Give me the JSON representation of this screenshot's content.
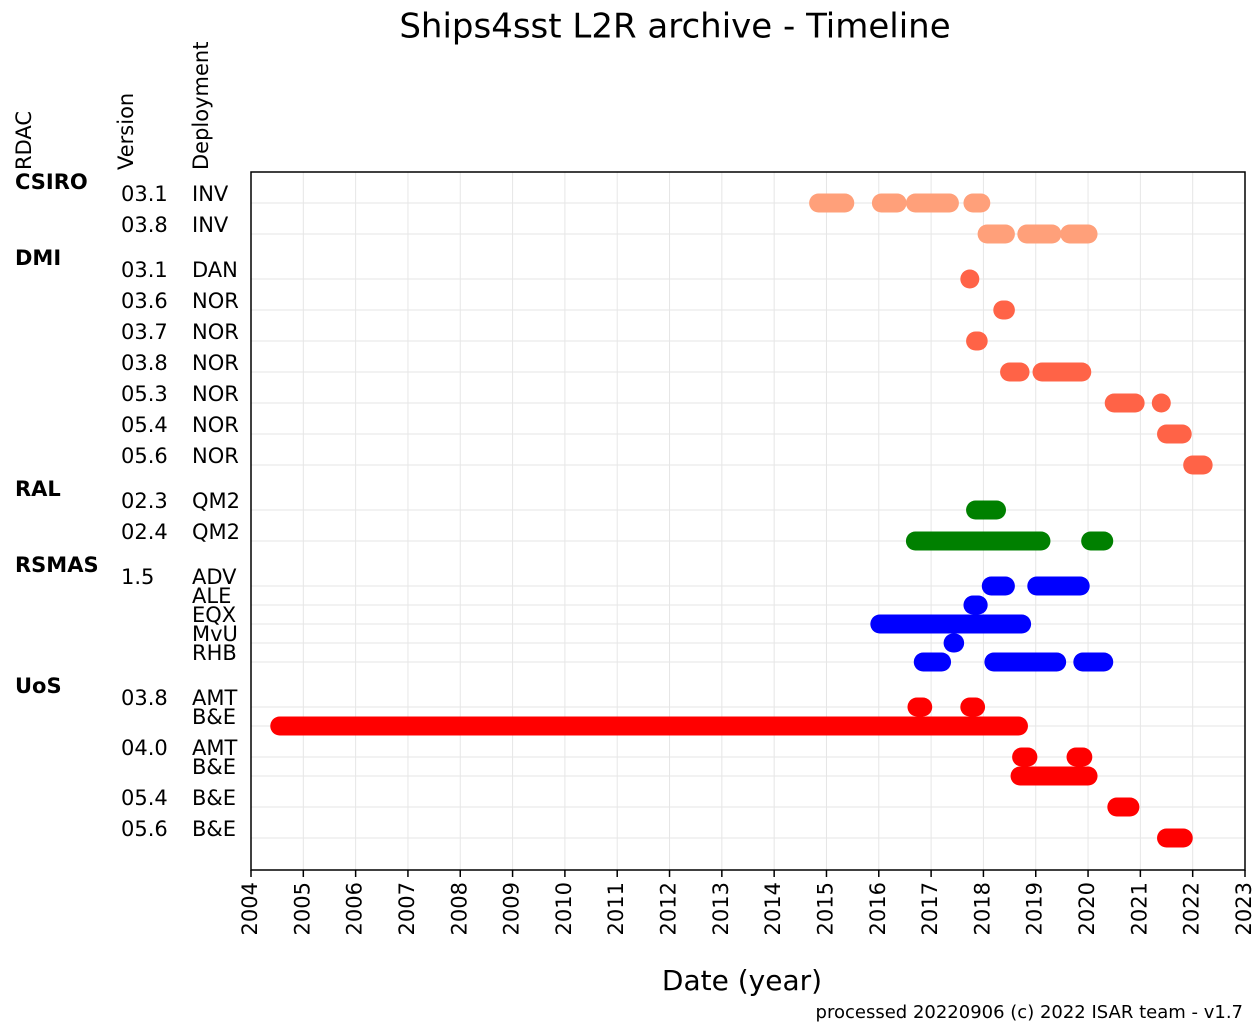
{
  "chart_data": {
    "type": "timeline",
    "title": "Ships4sst L2R archive - Timeline",
    "column_headers": [
      "RDAC",
      "Version",
      "Deployment"
    ],
    "x_label": "Date (year)",
    "footer": "processed 20220906 (c) 2022 ISAR team - v1.7",
    "xlim": [
      2004,
      2023
    ],
    "xticks": [
      2004,
      2005,
      2006,
      2007,
      2008,
      2009,
      2010,
      2011,
      2012,
      2013,
      2014,
      2015,
      2016,
      2017,
      2018,
      2019,
      2020,
      2021,
      2022,
      2023
    ],
    "grid": true,
    "groups": [
      {
        "name": "CSIRO",
        "color": "#ffa07a",
        "versions": [
          {
            "version": "03.1",
            "deployments": [
              {
                "name": "INV",
                "segments": [
                  [
                    2014.85,
                    2015.35
                  ],
                  [
                    2016.05,
                    2016.35
                  ],
                  [
                    2016.7,
                    2017.35
                  ],
                  [
                    2017.8,
                    2017.95
                  ]
                ]
              }
            ]
          },
          {
            "version": "03.8",
            "deployments": [
              {
                "name": "INV",
                "segments": [
                  [
                    2018.07,
                    2018.42
                  ],
                  [
                    2018.83,
                    2019.31
                  ],
                  [
                    2019.65,
                    2020.0
                  ]
                ]
              }
            ]
          }
        ]
      },
      {
        "name": "DMI",
        "color": "#ff6347",
        "versions": [
          {
            "version": "03.1",
            "deployments": [
              {
                "name": "DAN",
                "segments": [
                  [
                    2017.74,
                    2017.74
                  ]
                ]
              }
            ]
          },
          {
            "version": "03.6",
            "deployments": [
              {
                "name": "NOR",
                "segments": [
                  [
                    2018.37,
                    2018.42
                  ]
                ]
              }
            ]
          },
          {
            "version": "03.7",
            "deployments": [
              {
                "name": "NOR",
                "segments": [
                  [
                    2017.85,
                    2017.9
                  ]
                ]
              }
            ]
          },
          {
            "version": "03.8",
            "deployments": [
              {
                "name": "NOR",
                "segments": [
                  [
                    2018.5,
                    2018.7
                  ],
                  [
                    2019.12,
                    2019.88
                  ]
                ]
              }
            ]
          },
          {
            "version": "05.3",
            "deployments": [
              {
                "name": "NOR",
                "segments": [
                  [
                    2020.5,
                    2020.9
                  ],
                  [
                    2021.4,
                    2021.4
                  ]
                ]
              }
            ]
          },
          {
            "version": "05.4",
            "deployments": [
              {
                "name": "NOR",
                "segments": [
                  [
                    2021.5,
                    2021.8
                  ]
                ]
              }
            ]
          },
          {
            "version": "05.6",
            "deployments": [
              {
                "name": "NOR",
                "segments": [
                  [
                    2022.0,
                    2022.2
                  ]
                ]
              }
            ]
          }
        ]
      },
      {
        "name": "RAL",
        "color": "#008000",
        "versions": [
          {
            "version": "02.3",
            "deployments": [
              {
                "name": "QM2",
                "segments": [
                  [
                    2017.85,
                    2018.25
                  ]
                ]
              }
            ]
          },
          {
            "version": "02.4",
            "deployments": [
              {
                "name": "QM2",
                "segments": [
                  [
                    2016.7,
                    2019.1
                  ],
                  [
                    2020.05,
                    2020.3
                  ]
                ]
              }
            ]
          }
        ]
      },
      {
        "name": "RSMAS",
        "color": "#0000ff",
        "versions": [
          {
            "version": "1.5",
            "deployments": [
              {
                "name": "ADV",
                "segments": [
                  [
                    2018.15,
                    2018.42
                  ],
                  [
                    2019.02,
                    2019.85
                  ]
                ]
              },
              {
                "name": "ALE",
                "segments": [
                  [
                    2017.8,
                    2017.9
                  ]
                ]
              },
              {
                "name": "EQX",
                "segments": [
                  [
                    2016.02,
                    2018.73
                  ]
                ]
              },
              {
                "name": "MvU",
                "segments": [
                  [
                    2017.42,
                    2017.45
                  ]
                ]
              },
              {
                "name": "RHB",
                "segments": [
                  [
                    2016.85,
                    2017.2
                  ],
                  [
                    2018.2,
                    2019.4
                  ],
                  [
                    2019.9,
                    2020.3
                  ]
                ]
              }
            ]
          }
        ]
      },
      {
        "name": "UoS",
        "color": "#ff0000",
        "versions": [
          {
            "version": "03.8",
            "deployments": [
              {
                "name": "AMT",
                "segments": [
                  [
                    2016.73,
                    2016.84
                  ],
                  [
                    2017.74,
                    2017.85
                  ]
                ]
              },
              {
                "name": "B&E",
                "segments": [
                  [
                    2004.55,
                    2018.67
                  ]
                ]
              }
            ]
          },
          {
            "version": "04.0",
            "deployments": [
              {
                "name": "AMT",
                "segments": [
                  [
                    2018.73,
                    2018.85
                  ],
                  [
                    2019.77,
                    2019.9
                  ]
                ]
              },
              {
                "name": "B&E",
                "segments": [
                  [
                    2018.7,
                    2020.0
                  ]
                ]
              }
            ]
          },
          {
            "version": "05.4",
            "deployments": [
              {
                "name": "B&E",
                "segments": [
                  [
                    2020.55,
                    2020.8
                  ]
                ]
              }
            ]
          },
          {
            "version": "05.6",
            "deployments": [
              {
                "name": "B&E",
                "segments": [
                  [
                    2021.5,
                    2021.82
                  ]
                ]
              }
            ]
          }
        ]
      }
    ]
  }
}
